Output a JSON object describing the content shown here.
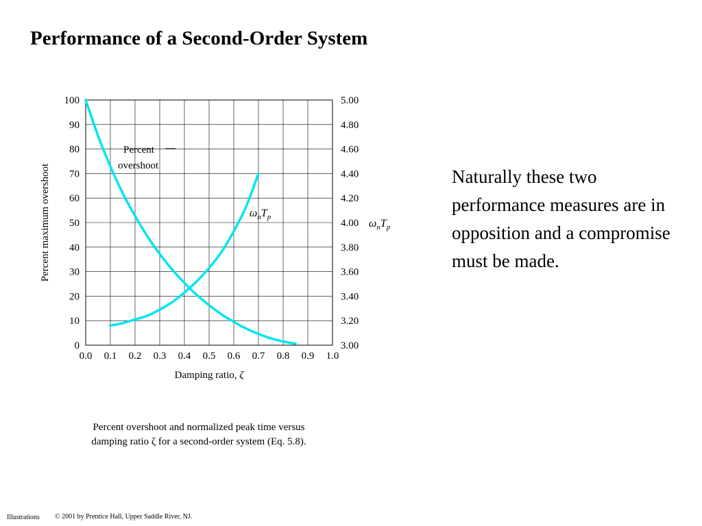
{
  "slide": {
    "title": "Performance of a Second-Order System",
    "side_text": "Naturally these two performance measures are in opposition and a compromise must be made.",
    "caption_line1": "Percent overshoot and normalized peak time versus",
    "caption_line2": "damping ratio ζ for a second-order system (Eq. 5.8).",
    "footer_left": "Illustrations",
    "footer_right": "© 2001 by Prentice Hall, Upper Saddle River, NJ."
  },
  "chart_data": {
    "type": "line",
    "xlabel": "Damping ratio, ζ",
    "ylabel_left": "Percent maximum overshoot",
    "ylabel_right": "ωnTp",
    "xlim": [
      0.0,
      1.0
    ],
    "ylim_left": [
      0,
      100
    ],
    "ylim_right": [
      3.0,
      5.0
    ],
    "x_ticks": [
      "0.0",
      "0.1",
      "0.2",
      "0.3",
      "0.4",
      "0.5",
      "0.6",
      "0.7",
      "0.8",
      "0.9",
      "1.0"
    ],
    "y_ticks_left": [
      "0",
      "10",
      "20",
      "30",
      "40",
      "50",
      "60",
      "70",
      "80",
      "90",
      "100"
    ],
    "y_ticks_right": [
      "3.00",
      "3.20",
      "3.40",
      "3.60",
      "3.80",
      "4.00",
      "4.20",
      "4.40",
      "4.60",
      "4.80",
      "5.00"
    ],
    "grid": true,
    "line_color": "#00e5f0",
    "series": [
      {
        "name": "Percent overshoot",
        "axis": "left",
        "x": [
          0.0,
          0.05,
          0.1,
          0.15,
          0.2,
          0.25,
          0.3,
          0.35,
          0.4,
          0.45,
          0.5,
          0.55,
          0.6,
          0.65,
          0.7,
          0.75,
          0.8,
          0.85
        ],
        "y": [
          100,
          85.4,
          72.9,
          62.0,
          52.7,
          44.4,
          37.2,
          30.9,
          25.4,
          20.5,
          16.3,
          12.6,
          9.5,
          6.8,
          4.6,
          2.8,
          1.5,
          0.6
        ]
      },
      {
        "name": "ωnTp",
        "axis": "right",
        "x": [
          0.1,
          0.15,
          0.2,
          0.25,
          0.3,
          0.35,
          0.4,
          0.45,
          0.5,
          0.55,
          0.6,
          0.65,
          0.7
        ],
        "y": [
          3.16,
          3.18,
          3.21,
          3.24,
          3.29,
          3.35,
          3.43,
          3.52,
          3.63,
          3.76,
          3.93,
          4.13,
          4.4
        ]
      }
    ],
    "annotations": [
      {
        "text_line1": "Percent",
        "text_line2": "overshoot",
        "target_series": 0
      },
      {
        "text": "ωnTp",
        "target_series": 1
      }
    ]
  }
}
